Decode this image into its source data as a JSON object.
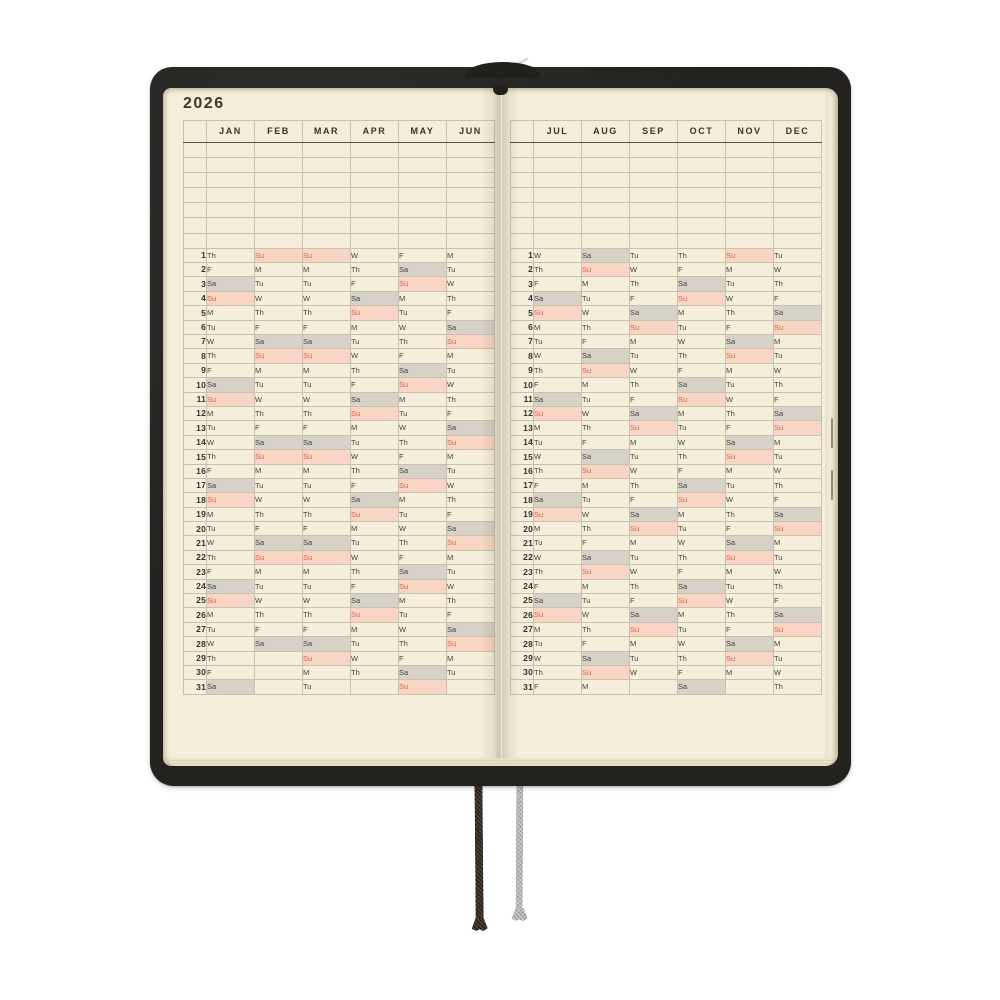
{
  "year": "2026",
  "blank_rows": 7,
  "day_numbers": [
    1,
    2,
    3,
    4,
    5,
    6,
    7,
    8,
    9,
    10,
    11,
    12,
    13,
    14,
    15,
    16,
    17,
    18,
    19,
    20,
    21,
    22,
    23,
    24,
    25,
    26,
    27,
    28,
    29,
    30,
    31
  ],
  "colors": {
    "cover": "#22201d",
    "page": "#f5eedb",
    "grid_line": "#c9c1ad",
    "table_border": "#57534a",
    "text_dark": "#35332c",
    "saturday_bg": "#d6d2c8",
    "sunday_bg": "#f8d5c4",
    "sunday_text": "#cc6a4e",
    "ribbon_dark": "#322820",
    "ribbon_gray": "#b5b5b1"
  },
  "pages": [
    {
      "side": "left",
      "months": [
        {
          "label": "JAN",
          "weekdays": [
            "Th",
            "F",
            "Sa",
            "Su",
            "M",
            "Tu",
            "W",
            "Th",
            "F",
            "Sa",
            "Su",
            "M",
            "Tu",
            "W",
            "Th",
            "F",
            "Sa",
            "Su",
            "M",
            "Tu",
            "W",
            "Th",
            "F",
            "Sa",
            "Su",
            "M",
            "Tu",
            "W",
            "Th",
            "F",
            "Sa"
          ]
        },
        {
          "label": "FEB",
          "weekdays": [
            "Su",
            "M",
            "Tu",
            "W",
            "Th",
            "F",
            "Sa",
            "Su",
            "M",
            "Tu",
            "W",
            "Th",
            "F",
            "Sa",
            "Su",
            "M",
            "Tu",
            "W",
            "Th",
            "F",
            "Sa",
            "Su",
            "M",
            "Tu",
            "W",
            "Th",
            "F",
            "Sa",
            "",
            "",
            ""
          ]
        },
        {
          "label": "MAR",
          "weekdays": [
            "Su",
            "M",
            "Tu",
            "W",
            "Th",
            "F",
            "Sa",
            "Su",
            "M",
            "Tu",
            "W",
            "Th",
            "F",
            "Sa",
            "Su",
            "M",
            "Tu",
            "W",
            "Th",
            "F",
            "Sa",
            "Su",
            "M",
            "Tu",
            "W",
            "Th",
            "F",
            "Sa",
            "Su",
            "M",
            "Tu"
          ]
        },
        {
          "label": "APR",
          "weekdays": [
            "W",
            "Th",
            "F",
            "Sa",
            "Su",
            "M",
            "Tu",
            "W",
            "Th",
            "F",
            "Sa",
            "Su",
            "M",
            "Tu",
            "W",
            "Th",
            "F",
            "Sa",
            "Su",
            "M",
            "Tu",
            "W",
            "Th",
            "F",
            "Sa",
            "Su",
            "M",
            "Tu",
            "W",
            "Th",
            ""
          ]
        },
        {
          "label": "MAY",
          "weekdays": [
            "F",
            "Sa",
            "Su",
            "M",
            "Tu",
            "W",
            "Th",
            "F",
            "Sa",
            "Su",
            "M",
            "Tu",
            "W",
            "Th",
            "F",
            "Sa",
            "Su",
            "M",
            "Tu",
            "W",
            "Th",
            "F",
            "Sa",
            "Su",
            "M",
            "Tu",
            "W",
            "Th",
            "F",
            "Sa",
            "Su"
          ]
        },
        {
          "label": "JUN",
          "weekdays": [
            "M",
            "Tu",
            "W",
            "Th",
            "F",
            "Sa",
            "Su",
            "M",
            "Tu",
            "W",
            "Th",
            "F",
            "Sa",
            "Su",
            "M",
            "Tu",
            "W",
            "Th",
            "F",
            "Sa",
            "Su",
            "M",
            "Tu",
            "W",
            "Th",
            "F",
            "Sa",
            "Su",
            "M",
            "Tu",
            ""
          ]
        }
      ]
    },
    {
      "side": "right",
      "months": [
        {
          "label": "JUL",
          "weekdays": [
            "W",
            "Th",
            "F",
            "Sa",
            "Su",
            "M",
            "Tu",
            "W",
            "Th",
            "F",
            "Sa",
            "Su",
            "M",
            "Tu",
            "W",
            "Th",
            "F",
            "Sa",
            "Su",
            "M",
            "Tu",
            "W",
            "Th",
            "F",
            "Sa",
            "Su",
            "M",
            "Tu",
            "W",
            "Th",
            "F"
          ]
        },
        {
          "label": "AUG",
          "weekdays": [
            "Sa",
            "Su",
            "M",
            "Tu",
            "W",
            "Th",
            "F",
            "Sa",
            "Su",
            "M",
            "Tu",
            "W",
            "Th",
            "F",
            "Sa",
            "Su",
            "M",
            "Tu",
            "W",
            "Th",
            "F",
            "Sa",
            "Su",
            "M",
            "Tu",
            "W",
            "Th",
            "F",
            "Sa",
            "Su",
            "M"
          ]
        },
        {
          "label": "SEP",
          "weekdays": [
            "Tu",
            "W",
            "Th",
            "F",
            "Sa",
            "Su",
            "M",
            "Tu",
            "W",
            "Th",
            "F",
            "Sa",
            "Su",
            "M",
            "Tu",
            "W",
            "Th",
            "F",
            "Sa",
            "Su",
            "M",
            "Tu",
            "W",
            "Th",
            "F",
            "Sa",
            "Su",
            "M",
            "Tu",
            "W",
            ""
          ]
        },
        {
          "label": "OCT",
          "weekdays": [
            "Th",
            "F",
            "Sa",
            "Su",
            "M",
            "Tu",
            "W",
            "Th",
            "F",
            "Sa",
            "Su",
            "M",
            "Tu",
            "W",
            "Th",
            "F",
            "Sa",
            "Su",
            "M",
            "Tu",
            "W",
            "Th",
            "F",
            "Sa",
            "Su",
            "M",
            "Tu",
            "W",
            "Th",
            "F",
            "Sa"
          ]
        },
        {
          "label": "NOV",
          "weekdays": [
            "Su",
            "M",
            "Tu",
            "W",
            "Th",
            "F",
            "Sa",
            "Su",
            "M",
            "Tu",
            "W",
            "Th",
            "F",
            "Sa",
            "Su",
            "M",
            "Tu",
            "W",
            "Th",
            "F",
            "Sa",
            "Su",
            "M",
            "Tu",
            "W",
            "Th",
            "F",
            "Sa",
            "Su",
            "M",
            ""
          ]
        },
        {
          "label": "DEC",
          "weekdays": [
            "Tu",
            "W",
            "Th",
            "F",
            "Sa",
            "Su",
            "M",
            "Tu",
            "W",
            "Th",
            "F",
            "Sa",
            "Su",
            "M",
            "Tu",
            "W",
            "Th",
            "F",
            "Sa",
            "Su",
            "M",
            "Tu",
            "W",
            "Th",
            "F",
            "Sa",
            "Su",
            "M",
            "Tu",
            "W",
            "Th"
          ]
        }
      ]
    }
  ]
}
